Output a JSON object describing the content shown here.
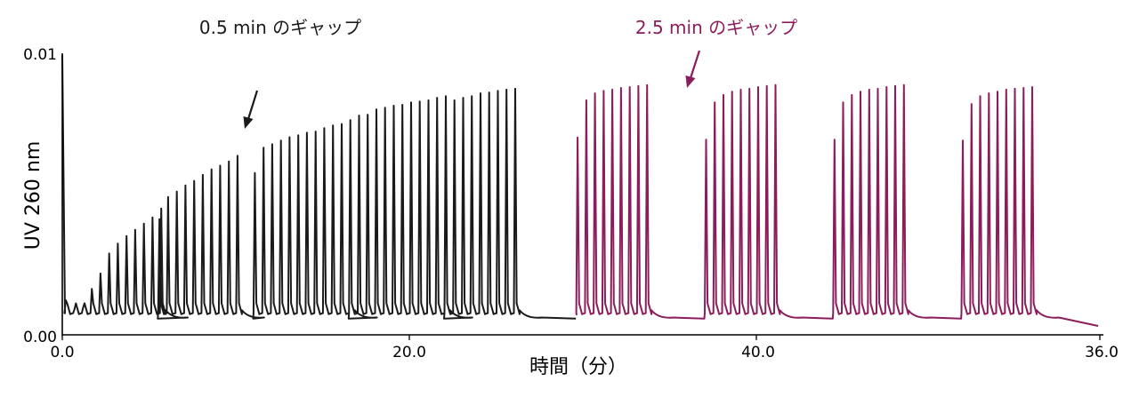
{
  "chart_data": {
    "type": "line",
    "title": "",
    "xlabel": "時間（分）",
    "ylabel": "UV 260 nm",
    "x_tick_labels": [
      "0.0",
      "20.0",
      "40.0",
      "36.0"
    ],
    "y_tick_labels": [
      "0.00",
      "0.01"
    ],
    "ylim": [
      0,
      0.01
    ],
    "grid": false,
    "baseline_y": 0.0007,
    "series": [
      {
        "color": "#1a1a1a",
        "groups": [
          {
            "start_x": 0.2,
            "peaks": [
              0.00123,
              0.00091,
              0.00097,
              0.00163,
              0.00218,
              0.00289,
              0.00324,
              0.00351,
              0.00373,
              0.00395,
              0.00417,
              0.00449
            ]
          },
          {
            "start_x": 5.6,
            "peaks": [
              0.00411,
              0.0049,
              0.00509,
              0.00531,
              0.00547,
              0.00568,
              0.00588,
              0.00601,
              0.00616,
              0.00636
            ]
          },
          {
            "start_x": 11.1,
            "peaks": [
              0.00575,
              0.00665,
              0.00677,
              0.0069,
              0.00702,
              0.00709,
              0.00718,
              0.00722,
              0.00734,
              0.00744,
              0.00749,
              0.00763
            ]
          },
          {
            "start_x": 16.6,
            "peaks": [
              0.00763,
              0.00779,
              0.00782,
              0.00801,
              0.00807,
              0.00814,
              0.00817,
              0.00826,
              0.00829,
              0.00833,
              0.00842,
              0.00848
            ]
          },
          {
            "start_x": 22.1,
            "peaks": [
              0.00734,
              0.00833,
              0.00842,
              0.00848,
              0.00858,
              0.00861,
              0.00867,
              0.00871,
              0.00874
            ]
          }
        ]
      },
      {
        "color": "#8c1d5c",
        "groups": [
          {
            "start_x": 29.7,
            "peaks": [
              0.00701,
              0.00833,
              0.00858,
              0.00867,
              0.00871,
              0.00877,
              0.0088,
              0.00884,
              0.00887
            ]
          },
          {
            "start_x": 37.1,
            "peaks": [
              0.00693,
              0.00826,
              0.00852,
              0.00864,
              0.00871,
              0.00874,
              0.0088,
              0.00884,
              0.00887
            ]
          },
          {
            "start_x": 44.5,
            "peaks": [
              0.00693,
              0.00826,
              0.00852,
              0.00864,
              0.00871,
              0.00874,
              0.0088,
              0.00884,
              0.00887
            ]
          },
          {
            "start_x": 51.9,
            "peaks": [
              0.0069,
              0.0082,
              0.00848,
              0.00858,
              0.00864,
              0.00871,
              0.00874,
              0.00877,
              0.0088
            ]
          }
        ]
      }
    ],
    "annotations": [
      {
        "text": "0.5 min のギャップ",
        "color": "#1a1a1a"
      },
      {
        "text": "2.5 min のギャップ",
        "color": "#8c1d5c"
      }
    ]
  }
}
